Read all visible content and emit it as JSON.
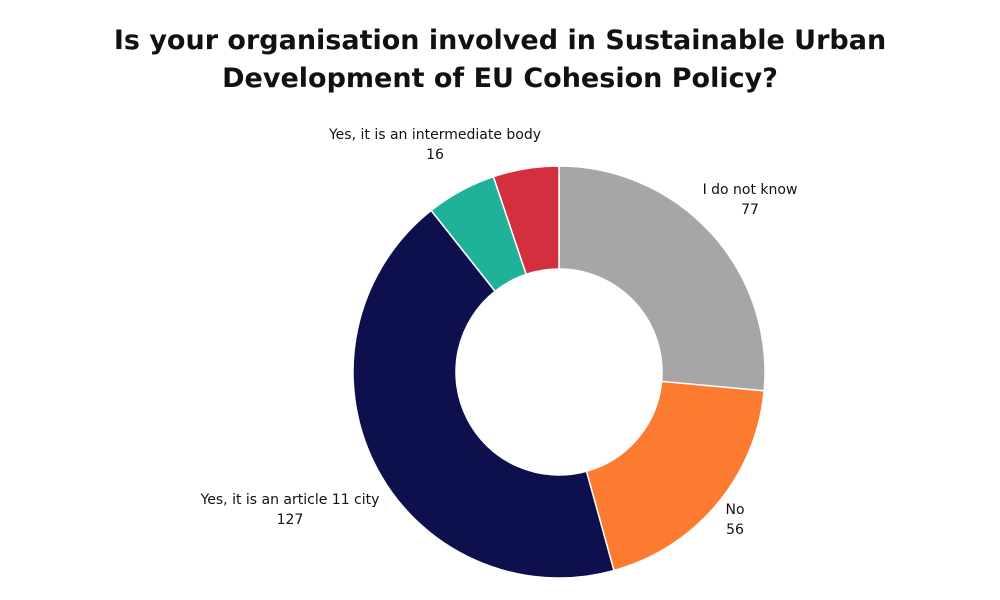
{
  "chart_data": {
    "type": "pie",
    "variant": "donut",
    "title_lines": [
      "Is your organisation involved in Sustainable Urban",
      "Development of EU Cohesion Policy?"
    ],
    "slices": [
      {
        "label": "I do not know",
        "value": 77,
        "value_label": "77",
        "color": "#a6a6a8"
      },
      {
        "label": "No",
        "value": 56,
        "value_label": "56",
        "color": "#fd7b30"
      },
      {
        "label": "Yes, it is an article 11 city",
        "value": 127,
        "value_label": "127",
        "color": "#0d104d"
      },
      {
        "label": "Yes, it is an intermediate body",
        "value": 16,
        "value_label": "16",
        "color": "#1fb299"
      },
      {
        "label": "",
        "value": 15,
        "value_label": "",
        "color": "#d42f3e"
      }
    ],
    "start_angle_deg": 0,
    "direction": "clockwise",
    "legend": "none"
  }
}
